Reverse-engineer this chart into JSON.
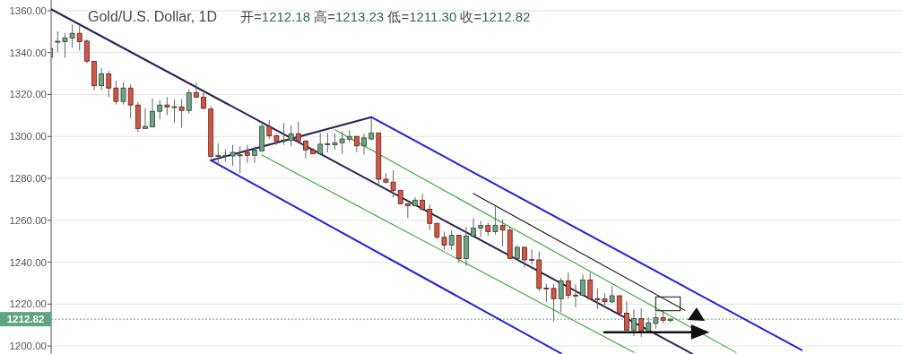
{
  "chart_data": {
    "type": "candlestick",
    "title": "Gold/U.S. Dollar, 1D",
    "subtitle": "开=1212.18 高=1213.23 低=1211.30 收=1212.82",
    "categories": [
      null,
      null,
      null,
      null,
      null,
      null,
      null,
      null,
      null,
      null,
      null,
      null,
      null,
      null,
      null,
      null,
      null,
      null,
      null,
      null,
      null,
      null,
      null,
      null,
      null,
      null,
      null,
      null,
      null,
      null,
      null,
      null,
      null,
      null,
      null,
      null,
      null,
      null,
      null,
      null,
      null,
      null,
      null,
      null,
      null,
      null,
      null,
      null,
      null,
      null,
      null,
      null,
      null,
      null,
      null,
      null,
      null,
      null,
      null,
      null,
      null,
      null,
      null,
      null,
      null,
      null,
      null,
      null,
      null,
      null,
      null,
      null,
      null,
      null,
      null,
      null,
      null,
      null,
      null,
      null,
      null,
      null,
      null,
      null,
      null,
      null,
      null,
      null,
      null,
      null,
      null,
      null,
      null,
      null,
      null,
      null,
      null,
      null,
      null,
      null,
      null,
      null,
      null,
      null,
      null,
      null,
      null,
      null,
      null,
      null,
      null,
      null,
      null,
      null,
      null,
      null,
      null
    ],
    "ohlc": [
      [
        1338.0,
        1345.2,
        1334.5,
        1342.0
      ],
      [
        1345.0,
        1350.2,
        1340.2,
        1345.4
      ],
      [
        1345.2,
        1349.4,
        1337.6,
        1347.0
      ],
      [
        1346.9,
        1353.4,
        1342.3,
        1349.2
      ],
      [
        1349.2,
        1353.0,
        1340.9,
        1345.2
      ],
      [
        1345.5,
        1346.3,
        1334.9,
        1335.9
      ],
      [
        1335.9,
        1335.9,
        1322.1,
        1324.2
      ],
      [
        1324.2,
        1332.6,
        1322.1,
        1329.9
      ],
      [
        1329.9,
        1331.2,
        1318.8,
        1323.1
      ],
      [
        1323.1,
        1326.6,
        1315.2,
        1316.7
      ],
      [
        1316.7,
        1325.9,
        1315.2,
        1323.1
      ],
      [
        1323.1,
        1324.9,
        1308.7,
        1315.0
      ],
      [
        1315.0,
        1316.4,
        1302.1,
        1303.8
      ],
      [
        1303.8,
        1313.5,
        1303.8,
        1304.8
      ],
      [
        1304.5,
        1318.1,
        1304.5,
        1312.0
      ],
      [
        1312.0,
        1317.4,
        1308.1,
        1315.0
      ],
      [
        1315.0,
        1318.8,
        1310.2,
        1314.1
      ],
      [
        1314.1,
        1317.8,
        1306.4,
        1314.2
      ],
      [
        1314.1,
        1317.8,
        1304.1,
        1312.4
      ],
      [
        1312.4,
        1322.6,
        1310.9,
        1320.9
      ],
      [
        1320.9,
        1325.6,
        1318.4,
        1318.8
      ],
      [
        1318.8,
        1322.4,
        1313.0,
        1313.4
      ],
      [
        1313.1,
        1314.5,
        1289.6,
        1290.5
      ],
      [
        1290.5,
        1296.7,
        1286.0,
        1290.9
      ],
      [
        1290.7,
        1293.8,
        1288.1,
        1291.0
      ],
      [
        1290.7,
        1296.0,
        1286.0,
        1292.4
      ],
      [
        1291.0,
        1295.3,
        1282.4,
        1291.2
      ],
      [
        1292.4,
        1296.0,
        1287.4,
        1291.0
      ],
      [
        1291.0,
        1295.3,
        1287.4,
        1293.4
      ],
      [
        1293.1,
        1306.7,
        1293.1,
        1304.8
      ],
      [
        1304.8,
        1307.8,
        1298.8,
        1300.3
      ],
      [
        1300.3,
        1301.0,
        1296.0,
        1297.8
      ],
      [
        1298.0,
        1306.4,
        1296.0,
        1298.3
      ],
      [
        1298.1,
        1305.2,
        1295.3,
        1301.3
      ],
      [
        1301.3,
        1307.0,
        1296.7,
        1297.8
      ],
      [
        1297.8,
        1298.4,
        1289.6,
        1293.6
      ],
      [
        1293.6,
        1294.5,
        1291.7,
        1291.7
      ],
      [
        1291.7,
        1301.7,
        1291.0,
        1296.3
      ],
      [
        1296.3,
        1301.7,
        1292.4,
        1296.5
      ],
      [
        1296.0,
        1301.3,
        1293.8,
        1297.0
      ],
      [
        1297.0,
        1302.4,
        1291.7,
        1298.8
      ],
      [
        1298.7,
        1303.1,
        1297.4,
        1300.0
      ],
      [
        1300.0,
        1300.3,
        1292.4,
        1295.5
      ],
      [
        1295.5,
        1301.3,
        1291.3,
        1299.3
      ],
      [
        1298.8,
        1308.8,
        1298.1,
        1301.7
      ],
      [
        1301.7,
        1301.7,
        1277.4,
        1279.6
      ],
      [
        1279.6,
        1282.4,
        1277.4,
        1278.2
      ],
      [
        1278.2,
        1283.9,
        1271.0,
        1274.3
      ],
      [
        1274.3,
        1274.6,
        1267.6,
        1267.9
      ],
      [
        1267.9,
        1268.2,
        1261.0,
        1267.0
      ],
      [
        1267.0,
        1271.0,
        1266.7,
        1269.6
      ],
      [
        1269.6,
        1272.7,
        1264.6,
        1265.3
      ],
      [
        1265.3,
        1267.5,
        1255.3,
        1258.5
      ],
      [
        1258.5,
        1258.8,
        1251.1,
        1251.9
      ],
      [
        1251.9,
        1254.6,
        1246.1,
        1248.2
      ],
      [
        1248.2,
        1255.3,
        1246.1,
        1252.8
      ],
      [
        1252.8,
        1253.0,
        1239.6,
        1241.8
      ],
      [
        1241.8,
        1256.8,
        1238.2,
        1252.5
      ],
      [
        1252.5,
        1261.0,
        1251.9,
        1256.3
      ],
      [
        1256.3,
        1259.6,
        1251.9,
        1257.5
      ],
      [
        1257.5,
        1258.9,
        1252.5,
        1254.6
      ],
      [
        1254.6,
        1266.7,
        1253.2,
        1257.5
      ],
      [
        1257.5,
        1260.3,
        1247.5,
        1255.3
      ],
      [
        1255.3,
        1256.8,
        1241.8,
        1241.8
      ],
      [
        1241.8,
        1248.2,
        1241.1,
        1247.1
      ],
      [
        1247.1,
        1247.5,
        1237.5,
        1241.1
      ],
      [
        1241.3,
        1246.1,
        1238.9,
        1241.1
      ],
      [
        1241.1,
        1245.1,
        1226.1,
        1227.5
      ],
      [
        1227.6,
        1229.7,
        1221.1,
        1227.4
      ],
      [
        1227.5,
        1229.7,
        1211.8,
        1222.5
      ],
      [
        1222.5,
        1232.5,
        1216.1,
        1231.1
      ],
      [
        1231.1,
        1235.1,
        1222.5,
        1224.2
      ],
      [
        1224.3,
        1229.4,
        1218.5,
        1224.1
      ],
      [
        1224.2,
        1234.2,
        1224.0,
        1231.5
      ],
      [
        1231.5,
        1235.1,
        1222.2,
        1222.5
      ],
      [
        1222.6,
        1227.5,
        1217.5,
        1222.4
      ],
      [
        1222.5,
        1225.1,
        1219.7,
        1221.1
      ],
      [
        1221.1,
        1228.5,
        1220.4,
        1224.0
      ],
      [
        1224.0,
        1224.0,
        1215.7,
        1215.7
      ],
      [
        1215.7,
        1221.4,
        1207.6,
        1207.6
      ],
      [
        1207.6,
        1217.5,
        1204.7,
        1213.1
      ],
      [
        1213.1,
        1218.0,
        1204.3,
        1207.1
      ],
      [
        1207.1,
        1213.7,
        1207.1,
        1211.1
      ],
      [
        1210.8,
        1216.1,
        1208.3,
        1213.5
      ],
      [
        1213.5,
        1217.1,
        1210.8,
        1212.3
      ],
      [
        1212.18,
        1213.23,
        1211.3,
        1212.82
      ],
      null,
      null,
      null,
      null,
      null,
      null,
      null,
      null,
      null,
      null,
      null,
      null,
      null,
      null,
      null,
      null,
      null,
      null,
      null,
      null,
      null,
      null,
      null,
      null,
      null,
      null,
      null,
      null,
      null,
      null,
      null
    ],
    "colors": [
      "#6ba583",
      "#6ba583",
      "#6ba583",
      "#6ba583",
      "#d75442",
      "#d75442",
      "#d75442",
      "#6ba583",
      "#d75442",
      "#d75442",
      "#6ba583",
      "#d75442",
      "#d75442",
      "#6ba583",
      "#6ba583",
      "#6ba583",
      "#d75442",
      "#6ba583",
      "#d75442",
      "#6ba583",
      "#d75442",
      "#d75442",
      "#d75442",
      "#6ba583",
      "#6ba583",
      "#6ba583",
      "#6ba583",
      "#d75442",
      "#6ba583",
      "#6ba583",
      "#d75442",
      "#d75442",
      "#6ba583",
      "#6ba583",
      "#d75442",
      "#d75442",
      "#d75442",
      "#6ba583",
      "#6ba583",
      "#6ba583",
      "#6ba583",
      "#6ba583",
      "#d75442",
      "#6ba583",
      "#6ba583",
      "#d75442",
      "#d75442",
      "#d75442",
      "#d75442",
      "#d75442",
      "#6ba583",
      "#d75442",
      "#d75442",
      "#d75442",
      "#d75442",
      "#6ba583",
      "#d75442",
      "#6ba583",
      "#6ba583",
      "#6ba583",
      "#d75442",
      "#6ba583",
      "#d75442",
      "#d75442",
      "#6ba583",
      "#d75442",
      "#d75442",
      "#d75442",
      "#d75442",
      "#d75442",
      "#6ba583",
      "#d75442",
      "#d75442",
      "#6ba583",
      "#d75442",
      "#d75442",
      "#d75442",
      "#6ba583",
      "#d75442",
      "#d75442",
      "#6ba583",
      "#d75442",
      "#6ba583",
      "#6ba583",
      "#d75442",
      "#6ba583",
      null,
      null,
      null,
      null,
      null,
      null,
      null,
      null,
      null,
      null,
      null,
      null,
      null,
      null,
      null,
      null,
      null,
      null,
      null,
      null,
      null,
      null,
      null,
      null,
      null,
      null,
      null,
      null,
      null,
      null,
      null
    ],
    "series": [
      {
        "type": "line",
        "values": [
          1360.9,
          null,
          null,
          null,
          null,
          null,
          null,
          null,
          null,
          null,
          null,
          null,
          null,
          null,
          null,
          null,
          null,
          null,
          null,
          null,
          null,
          null,
          null,
          null,
          null,
          null,
          null,
          null,
          null,
          null,
          null,
          null,
          null,
          null,
          null,
          null,
          null,
          null,
          null,
          null,
          null,
          null,
          null,
          null,
          null,
          null,
          null,
          null,
          null,
          null,
          null,
          null,
          null,
          null,
          null,
          null,
          null,
          null,
          null,
          null,
          null,
          null,
          null,
          null,
          null,
          null,
          null,
          null,
          null,
          null,
          null,
          null,
          null,
          null,
          null,
          null,
          null,
          null,
          null,
          null,
          null,
          null,
          null,
          null,
          null,
          null,
          null,
          null,
          1196.3,
          null,
          null,
          null,
          null,
          null,
          null,
          null,
          null,
          null,
          null,
          null,
          null,
          null,
          null,
          null,
          null,
          null,
          null,
          null,
          null,
          null,
          null,
          null,
          null,
          null,
          null,
          null,
          null
        ],
        "color": "#2a2358"
      },
      {
        "type": "line",
        "values": [
          null,
          null,
          null,
          null,
          null,
          null,
          null,
          null,
          null,
          null,
          null,
          null,
          null,
          null,
          null,
          null,
          null,
          null,
          null,
          null,
          null,
          null,
          1288.6,
          null,
          null,
          null,
          null,
          null,
          null,
          null,
          null,
          null,
          null,
          null,
          null,
          null,
          null,
          null,
          null,
          null,
          null,
          null,
          null,
          null,
          1309.2,
          null,
          null,
          null,
          null,
          null,
          null,
          null,
          null,
          null,
          null,
          null,
          null,
          null,
          null,
          null,
          null,
          null,
          null,
          null,
          null,
          null,
          null,
          null,
          null,
          null,
          null,
          null,
          null,
          null,
          null,
          null,
          null,
          null,
          null,
          null,
          null,
          null,
          null,
          null,
          null,
          null,
          null,
          null,
          null,
          null,
          null,
          null,
          null,
          null,
          null,
          null,
          null,
          null,
          null,
          null,
          null,
          null,
          null,
          null,
          null,
          null,
          null,
          null,
          null,
          null,
          null,
          null,
          null,
          null,
          null,
          null,
          null
        ],
        "color": "#2a2358"
      },
      {
        "type": "line",
        "values": [
          null,
          null,
          null,
          null,
          null,
          null,
          null,
          null,
          null,
          null,
          null,
          null,
          null,
          null,
          null,
          null,
          null,
          null,
          null,
          null,
          null,
          null,
          null,
          null,
          null,
          null,
          null,
          null,
          null,
          null,
          null,
          null,
          null,
          null,
          null,
          null,
          null,
          null,
          null,
          null,
          null,
          null,
          null,
          null,
          1309.2,
          null,
          null,
          null,
          null,
          null,
          null,
          null,
          null,
          null,
          null,
          null,
          null,
          null,
          null,
          null,
          null,
          null,
          null,
          null,
          null,
          null,
          null,
          null,
          null,
          null,
          null,
          null,
          null,
          null,
          null,
          null,
          null,
          null,
          null,
          null,
          null,
          null,
          null,
          null,
          null,
          null,
          null,
          null,
          null,
          null,
          null,
          null,
          null,
          null,
          null,
          null,
          null,
          null,
          null,
          null,
          null,
          null,
          null,
          1198.1,
          null,
          null,
          null,
          null,
          null,
          null,
          null,
          null,
          null,
          null,
          null,
          null,
          null
        ],
        "color": "#1f1fe6"
      },
      {
        "type": "line",
        "values": [
          null,
          null,
          null,
          null,
          null,
          null,
          null,
          null,
          null,
          null,
          null,
          null,
          null,
          null,
          null,
          null,
          null,
          null,
          null,
          null,
          null,
          null,
          1288.6,
          null,
          null,
          null,
          null,
          null,
          null,
          null,
          null,
          null,
          null,
          null,
          null,
          null,
          null,
          null,
          null,
          null,
          null,
          null,
          null,
          null,
          null,
          null,
          null,
          null,
          null,
          null,
          null,
          null,
          null,
          null,
          null,
          null,
          null,
          null,
          null,
          null,
          null,
          null,
          null,
          null,
          null,
          null,
          null,
          null,
          null,
          null,
          1196.5,
          null,
          null,
          null,
          null,
          null,
          null,
          null,
          null,
          null,
          null,
          null,
          null,
          null,
          null,
          null,
          null,
          null,
          null,
          null,
          null,
          null,
          null,
          null,
          null,
          null,
          null,
          null,
          null,
          null,
          null,
          null,
          null,
          null,
          null,
          null,
          null,
          null,
          null,
          null,
          null,
          null,
          null,
          null,
          null,
          null,
          null
        ],
        "color": "#1f1fe6"
      },
      {
        "type": "line",
        "values": [
          null,
          null,
          null,
          null,
          null,
          null,
          null,
          null,
          null,
          null,
          null,
          null,
          null,
          null,
          null,
          null,
          null,
          null,
          null,
          null,
          null,
          null,
          null,
          null,
          null,
          null,
          null,
          null,
          null,
          null,
          null,
          null,
          null,
          null,
          null,
          null,
          null,
          null,
          null,
          1303.2,
          null,
          null,
          null,
          null,
          null,
          null,
          null,
          null,
          null,
          null,
          null,
          null,
          null,
          null,
          null,
          null,
          null,
          null,
          null,
          null,
          null,
          null,
          null,
          null,
          null,
          null,
          null,
          null,
          null,
          null,
          null,
          null,
          null,
          null,
          null,
          null,
          null,
          null,
          null,
          null,
          null,
          null,
          null,
          null,
          null,
          null,
          null,
          null,
          null,
          null,
          null,
          null,
          null,
          null,
          1196.9,
          null,
          null,
          null,
          null,
          null,
          null,
          null,
          null,
          null,
          null,
          null,
          null,
          null,
          null,
          null,
          null,
          null,
          null,
          null,
          null,
          null,
          null
        ],
        "color": "#33aa33"
      },
      {
        "type": "line",
        "values": [
          null,
          null,
          null,
          null,
          null,
          null,
          null,
          null,
          null,
          null,
          null,
          null,
          null,
          null,
          null,
          null,
          null,
          null,
          null,
          null,
          null,
          null,
          null,
          null,
          null,
          null,
          null,
          null,
          null,
          1291.1,
          null,
          null,
          null,
          null,
          null,
          null,
          null,
          null,
          null,
          null,
          null,
          null,
          null,
          null,
          null,
          null,
          null,
          null,
          null,
          null,
          null,
          null,
          null,
          null,
          null,
          null,
          null,
          null,
          null,
          null,
          null,
          null,
          null,
          null,
          null,
          null,
          null,
          null,
          null,
          null,
          null,
          null,
          null,
          null,
          null,
          null,
          null,
          null,
          null,
          null,
          1196.9,
          null,
          null,
          null,
          null,
          null,
          null,
          null,
          null,
          null,
          null,
          null,
          null,
          null,
          null,
          null,
          null,
          null,
          null,
          null,
          null,
          null,
          null,
          null,
          null,
          null,
          null,
          null,
          null,
          null,
          null,
          null,
          null,
          null,
          null,
          null,
          null
        ],
        "color": "#33aa33"
      },
      {
        "type": "line",
        "values": [
          null,
          null,
          null,
          null,
          null,
          null,
          null,
          null,
          null,
          null,
          null,
          null,
          null,
          null,
          null,
          null,
          null,
          null,
          null,
          null,
          null,
          null,
          null,
          null,
          null,
          null,
          null,
          null,
          null,
          null,
          null,
          null,
          null,
          null,
          null,
          null,
          null,
          null,
          null,
          null,
          null,
          null,
          null,
          null,
          null,
          null,
          null,
          null,
          null,
          null,
          null,
          null,
          null,
          null,
          null,
          null,
          null,
          null,
          1272.7,
          null,
          null,
          null,
          null,
          null,
          null,
          null,
          null,
          null,
          null,
          null,
          null,
          null,
          null,
          null,
          null,
          null,
          null,
          null,
          null,
          null,
          null,
          null,
          null,
          null,
          null,
          null,
          null,
          1217.0,
          null,
          null,
          null,
          null,
          null,
          null,
          null,
          null,
          null,
          null,
          null,
          null,
          null,
          null,
          null,
          null,
          null,
          null,
          null,
          null,
          null,
          null,
          null,
          null,
          null,
          null,
          null,
          null,
          null
        ],
        "color": "#111111"
      }
    ],
    "ref_lines": [
      {
        "axis": "y",
        "value": 1212.82,
        "label": "1212.82",
        "color": "#5fa57f",
        "line_style": "dotted"
      }
    ],
    "ylim": [
      1196.2,
      1365.1
    ],
    "yticks": [
      {
        "value": 1200,
        "label": "1200.00"
      },
      {
        "value": 1220,
        "label": "1220.00"
      },
      {
        "value": 1240,
        "label": "1240.00"
      },
      {
        "value": 1260,
        "label": "1260.00"
      },
      {
        "value": 1280,
        "label": "1280.00"
      },
      {
        "value": 1300,
        "label": "1300.00"
      },
      {
        "value": 1320,
        "label": "1320.00"
      },
      {
        "value": 1340,
        "label": "1340.00"
      },
      {
        "value": 1360,
        "label": "1360.00"
      }
    ],
    "grid": "y",
    "tick_labels": "y"
  }
}
